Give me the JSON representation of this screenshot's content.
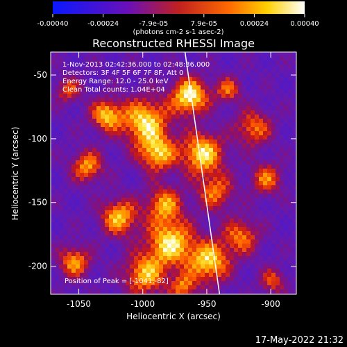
{
  "colorbar": {
    "ticks": [
      "-0.00040",
      "-0.00024",
      "-7.9e-05",
      "7.9e-05",
      "0.00024",
      "0.00040"
    ],
    "range": [
      -0.0004,
      0.0004
    ],
    "unit_label": "(photons cm-2 s-1 asec-2)",
    "colormap": [
      "#0a18ff",
      "#5a10c8",
      "#7a10a0",
      "#c02020",
      "#ff6a00",
      "#ffd000",
      "#ffffff"
    ]
  },
  "chart_data": {
    "type": "heatmap",
    "title": "Reconstructed RHESSI Image",
    "xlabel": "Heliocentric X (arcsec)",
    "ylabel": "Heliocentric Y (arcsec)",
    "xlim": [
      -1072,
      -880
    ],
    "ylim": [
      -222,
      -32
    ],
    "x_ticks": [
      -1050,
      -1000,
      -950,
      -900
    ],
    "y_ticks": [
      -50,
      -100,
      -150,
      -200
    ],
    "limb_line": {
      "x": [
        -967,
        -940
      ],
      "y": [
        -32,
        -222
      ]
    },
    "grid": false,
    "info_lines": [
      "1-Nov-2013 02:42:36.000 to 02:48:36.000",
      "Detectors: 3F 4F 5F 6F 7F 8F, Att 0",
      "Energy Range: 12.0 - 25.0 keV",
      "Clean    Total counts: 1.04E+04"
    ],
    "peak_text": "Position of Peak = [-1041,-82]"
  },
  "footer": {
    "timestamp": "17-May-2022 21:32"
  }
}
